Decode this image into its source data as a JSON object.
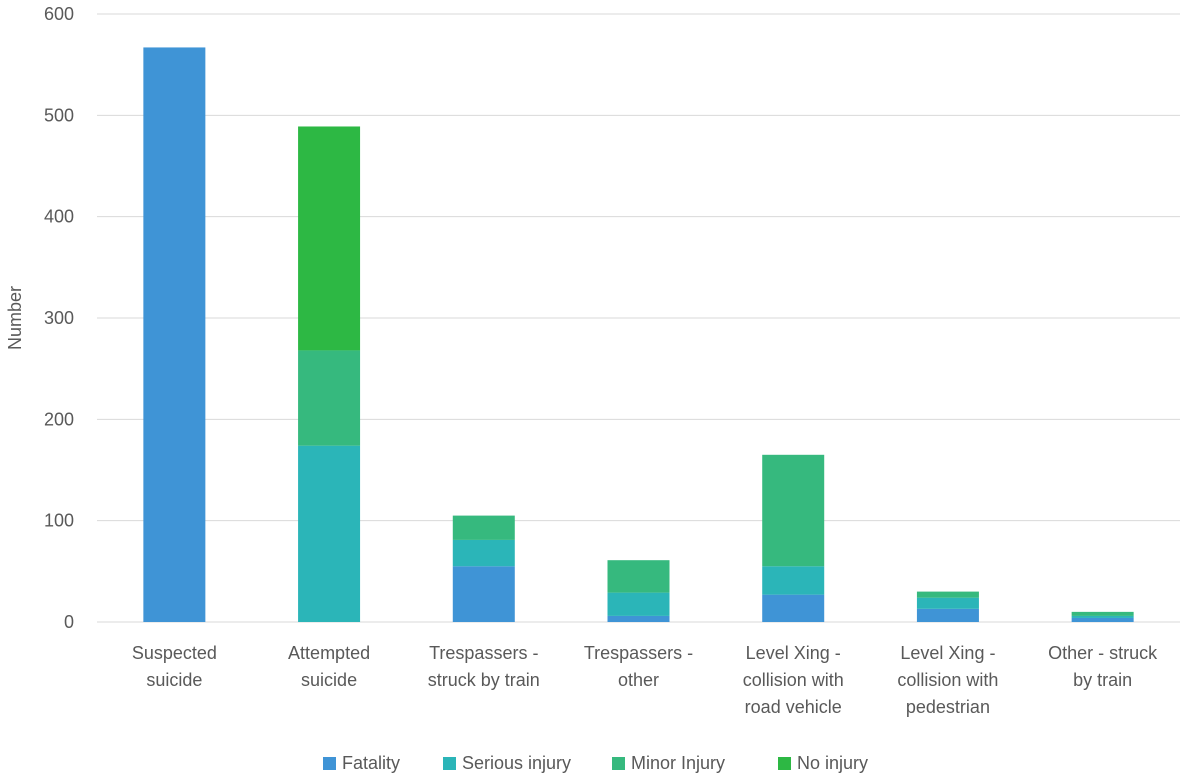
{
  "chart_data": {
    "type": "bar",
    "stacked": true,
    "title": "",
    "xlabel": "",
    "ylabel": "Number",
    "ylim": [
      0,
      600
    ],
    "yticks": [
      0,
      100,
      200,
      300,
      400,
      500,
      600
    ],
    "grid": true,
    "legend_position": "bottom",
    "categories": [
      [
        "Suspected",
        "suicide"
      ],
      [
        "Attempted",
        "suicide"
      ],
      [
        "Trespassers -",
        "struck by train"
      ],
      [
        "Trespassers -",
        "other"
      ],
      [
        "Level Xing -",
        "collision with",
        "road vehicle"
      ],
      [
        "Level Xing -",
        "collision with",
        "pedestrian"
      ],
      [
        "Other - struck",
        "by train"
      ]
    ],
    "series": [
      {
        "name": "Fatality",
        "color": "#3f94d6",
        "values": [
          567,
          0,
          55,
          6,
          27,
          13,
          4
        ]
      },
      {
        "name": "Serious injury",
        "color": "#2bb5b8",
        "values": [
          0,
          174,
          26,
          23,
          28,
          11,
          2
        ]
      },
      {
        "name": "Minor Injury",
        "color": "#36b97e",
        "values": [
          0,
          94,
          24,
          32,
          110,
          6,
          4
        ]
      },
      {
        "name": "No injury",
        "color": "#2db844",
        "values": [
          0,
          221,
          0,
          0,
          0,
          0,
          0
        ]
      }
    ]
  }
}
